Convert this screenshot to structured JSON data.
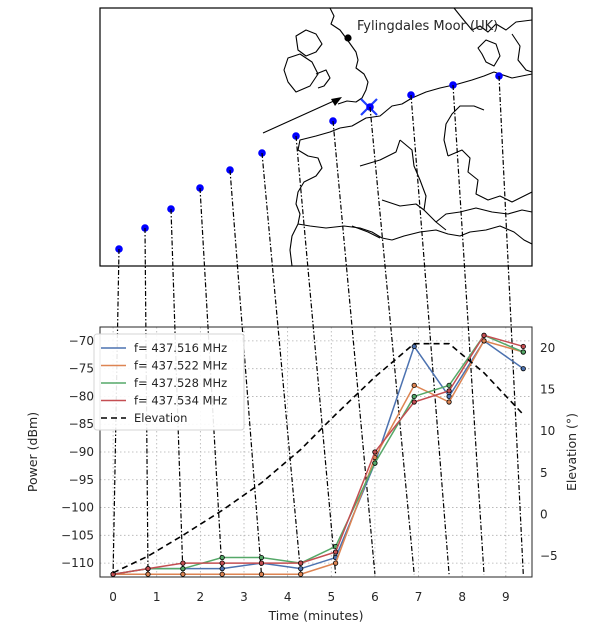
{
  "map": {
    "station_label": "Fylingdales Moor (UK)"
  },
  "chart_data": {
    "type": "line",
    "xlabel": "Time (minutes)",
    "ylabel": "Power (dBm)",
    "y2label": "Elevation (°)",
    "xlim": [
      -0.3,
      9.6
    ],
    "ylim": [
      -112.5,
      -67.5
    ],
    "y2lim": [
      -7.5,
      22.5
    ],
    "xticks": [
      0,
      1,
      2,
      3,
      4,
      5,
      6,
      7,
      8,
      9
    ],
    "yticks": [
      -70,
      -75,
      -80,
      -85,
      -90,
      -95,
      -100,
      -105,
      -110
    ],
    "y2ticks": [
      20,
      15,
      10,
      5,
      0,
      -5
    ],
    "grid": true,
    "legend_position": "top-left",
    "x": [
      0.0,
      0.8,
      1.6,
      2.5,
      3.4,
      4.3,
      5.1,
      6.0,
      6.9,
      7.7,
      8.5,
      9.4
    ],
    "series": [
      {
        "name": "f= 437.516  MHz",
        "color": "#4c72b0",
        "values": [
          -112,
          -111,
          -111,
          -111,
          -110,
          -111,
          -109,
          -92,
          -71,
          -80,
          -70,
          -75
        ]
      },
      {
        "name": "f= 437.522  MHz",
        "color": "#dd8452",
        "values": [
          -112,
          -112,
          -112,
          -112,
          -112,
          -112,
          -110,
          -91,
          -78,
          -81,
          -70,
          -72
        ]
      },
      {
        "name": "f= 437.528  MHz",
        "color": "#55a868",
        "values": [
          -112,
          -111,
          -111,
          -109,
          -109,
          -110,
          -107,
          -92,
          -80,
          -78,
          -69,
          -72
        ]
      },
      {
        "name": "f= 437.534  MHz",
        "color": "#c44e52",
        "values": [
          -112,
          -111,
          -110,
          -110,
          -110,
          -110,
          -108,
          -90,
          -81,
          -79,
          -69,
          -71
        ]
      }
    ],
    "elevation": {
      "name": "Elevation",
      "values": [
        -7,
        -5,
        -2.5,
        0.5,
        3.8,
        7.8,
        12,
        16.5,
        20.5,
        20.5,
        17,
        12
      ]
    }
  },
  "ground_track": [
    {
      "mx": 119,
      "my": 249
    },
    {
      "mx": 145,
      "my": 228
    },
    {
      "mx": 171,
      "my": 209
    },
    {
      "mx": 200,
      "my": 188
    },
    {
      "mx": 230,
      "my": 170
    },
    {
      "mx": 262,
      "my": 153
    },
    {
      "mx": 296,
      "my": 136
    },
    {
      "mx": 333,
      "my": 121
    },
    {
      "mx": 370,
      "my": 107
    },
    {
      "mx": 411,
      "my": 95
    },
    {
      "mx": 453,
      "my": 85
    },
    {
      "mx": 499,
      "my": 76
    }
  ],
  "colors": {
    "track": "#0000ff",
    "elevation": "#000000"
  }
}
